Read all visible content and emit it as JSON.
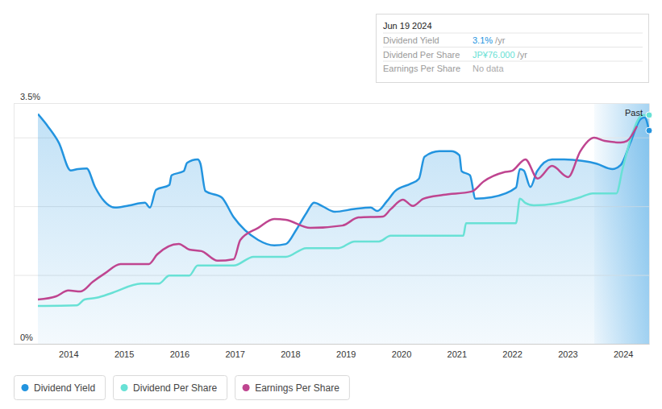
{
  "chart_data": {
    "type": "line",
    "xlim": [
      2013.45,
      2024.47
    ],
    "xticks": [
      2014,
      2015,
      2016,
      2017,
      2018,
      2019,
      2020,
      2021,
      2022,
      2023,
      2024
    ],
    "ylim": [
      0,
      3.5
    ],
    "yticks": [
      {
        "value": 0,
        "label": "0%"
      },
      {
        "value": 1,
        "label": null
      },
      {
        "value": 2,
        "label": null
      },
      {
        "value": 3,
        "label": null
      },
      {
        "value": 3.5,
        "label": "3.5%"
      }
    ],
    "y2lim": [
      0,
      80
    ],
    "y2ticks": [],
    "grid": true,
    "legend": "bottom",
    "series": [
      {
        "name": "Dividend Yield",
        "color": "#2394df",
        "type": "area",
        "x": [
          2013.45,
          2013.64,
          2013.83,
          2014.04,
          2014.17,
          2014.33,
          2014.48,
          2014.65,
          2014.84,
          2015.09,
          2015.38,
          2015.47,
          2015.58,
          2015.82,
          2015.86,
          2016.08,
          2016.14,
          2016.33,
          2016.38,
          2016.47,
          2016.76,
          2016.98,
          2017.42,
          2017.71,
          2017.92,
          2018.11,
          2018.29,
          2018.43,
          2018.58,
          2018.8,
          2019.16,
          2019.45,
          2019.57,
          2019.74,
          2019.89,
          2020.18,
          2020.32,
          2020.42,
          2020.69,
          2020.9,
          2021.05,
          2021.09,
          2021.24,
          2021.34,
          2021.63,
          2022.07,
          2022.14,
          2022.21,
          2022.33,
          2022.45,
          2022.72,
          2022.94,
          2023.26,
          2023.52,
          2023.81,
          2023.96,
          2024.13,
          2024.32,
          2024.39,
          2024.47
        ],
        "values": [
          3.34,
          3.15,
          2.92,
          2.52,
          2.54,
          2.55,
          2.28,
          2.07,
          1.98,
          2.01,
          2.05,
          1.98,
          2.24,
          2.31,
          2.45,
          2.51,
          2.63,
          2.68,
          2.62,
          2.22,
          2.13,
          1.84,
          1.51,
          1.43,
          1.45,
          1.66,
          1.9,
          2.05,
          2.0,
          1.92,
          1.96,
          1.98,
          1.93,
          2.07,
          2.22,
          2.33,
          2.4,
          2.72,
          2.8,
          2.8,
          2.74,
          2.51,
          2.45,
          2.11,
          2.13,
          2.27,
          2.54,
          2.52,
          2.28,
          2.51,
          2.68,
          2.68,
          2.66,
          2.62,
          2.54,
          2.6,
          2.92,
          3.27,
          3.29,
          3.1
        ]
      },
      {
        "name": "Dividend Per Share",
        "color": "#68e1d5",
        "axis": "y2",
        "x": [
          2013.45,
          2014.15,
          2014.29,
          2014.51,
          2014.8,
          2015.31,
          2015.63,
          2015.82,
          2016.18,
          2016.33,
          2016.98,
          2017.34,
          2017.92,
          2018.29,
          2018.87,
          2019.16,
          2019.6,
          2019.81,
          2021.12,
          2021.17,
          2022.07,
          2022.14,
          2022.24,
          2022.39,
          2022.79,
          2023.23,
          2023.45,
          2023.88,
          2023.99,
          2024.17,
          2024.35,
          2024.47
        ],
        "values": [
          12.6,
          12.8,
          14.7,
          15.3,
          17,
          20,
          20,
          22.7,
          22.7,
          26,
          26,
          28.9,
          28.9,
          31.8,
          31.8,
          34,
          34,
          35.9,
          35.9,
          40.1,
          40.1,
          48.2,
          46.8,
          46,
          46.6,
          48.7,
          50,
          50,
          58,
          70,
          76,
          76
        ]
      },
      {
        "name": "Earnings Per Share",
        "color": "#bf4590",
        "axis": "y2",
        "x": [
          2013.45,
          2013.78,
          2014,
          2014.22,
          2014.44,
          2014.65,
          2014.94,
          2015.45,
          2015.6,
          2015.99,
          2016.18,
          2016.4,
          2016.69,
          2016.98,
          2017.1,
          2017.42,
          2017.71,
          2017.92,
          2018.36,
          2018.94,
          2019.23,
          2019.67,
          2019.81,
          2020.03,
          2020.21,
          2020.4,
          2020.76,
          2021.27,
          2021.49,
          2021.85,
          2022,
          2022.24,
          2022.46,
          2022.72,
          2023.01,
          2023.23,
          2023.48,
          2023.67,
          2023.96,
          2024.07,
          2024.25
        ],
        "values": [
          14.7,
          15.8,
          17.7,
          17.4,
          20.6,
          23.3,
          26.5,
          26.5,
          29.7,
          33.2,
          31.3,
          30.8,
          27.6,
          28.1,
          34.5,
          38.5,
          41.5,
          41.2,
          38.5,
          39.3,
          42,
          42.3,
          44.7,
          47.9,
          45.8,
          48.2,
          49.5,
          50.6,
          54,
          57,
          57.5,
          61.3,
          54.9,
          59.1,
          55.4,
          64,
          68.5,
          67.4,
          66.9,
          67.4,
          72.3
        ]
      }
    ],
    "annotations": [
      {
        "text": "Past",
        "x": 2023.48
      }
    ],
    "tooltip": {
      "title": "Jun 19 2024",
      "rows": [
        {
          "label": "Dividend Yield",
          "value": "3.1%",
          "unit": "/yr"
        },
        {
          "label": "Dividend Per Share",
          "value": "JP¥76.000",
          "unit": "/yr"
        },
        {
          "label": "Earnings Per Share",
          "value": "No data"
        }
      ]
    }
  }
}
